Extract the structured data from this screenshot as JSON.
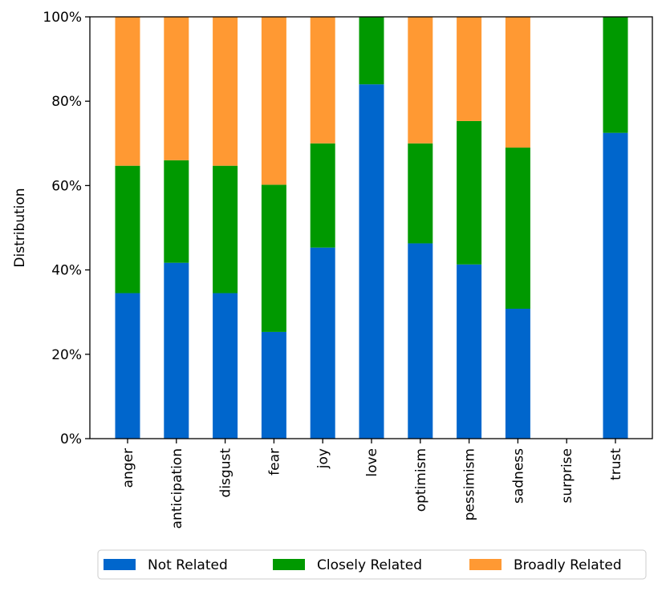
{
  "chart_data": {
    "type": "bar",
    "stacked": true,
    "title": "",
    "xlabel": "",
    "ylabel": "Distribution",
    "ylim": [
      0,
      100
    ],
    "yticks": [
      "0%",
      "20%",
      "40%",
      "60%",
      "80%",
      "100%"
    ],
    "categories": [
      "anger",
      "anticipation",
      "disgust",
      "fear",
      "joy",
      "love",
      "optimism",
      "pessimism",
      "sadness",
      "surprise",
      "trust"
    ],
    "series": [
      {
        "name": "Not Related",
        "color": "#0066cc",
        "values": [
          34.5,
          41.7,
          34.5,
          25.3,
          45.3,
          84.0,
          46.3,
          41.3,
          30.8,
          0,
          72.5
        ]
      },
      {
        "name": "Closely Related",
        "color": "#009900",
        "values": [
          30.2,
          24.3,
          30.2,
          34.9,
          24.7,
          16.0,
          23.7,
          34.0,
          38.2,
          0,
          27.5
        ]
      },
      {
        "name": "Broadly Related",
        "color": "#ff9933",
        "values": [
          35.3,
          34.0,
          35.3,
          39.8,
          30.0,
          0,
          30.0,
          24.7,
          31.0,
          0,
          0
        ]
      }
    ],
    "legend_position": "bottom-center",
    "grid": false
  }
}
